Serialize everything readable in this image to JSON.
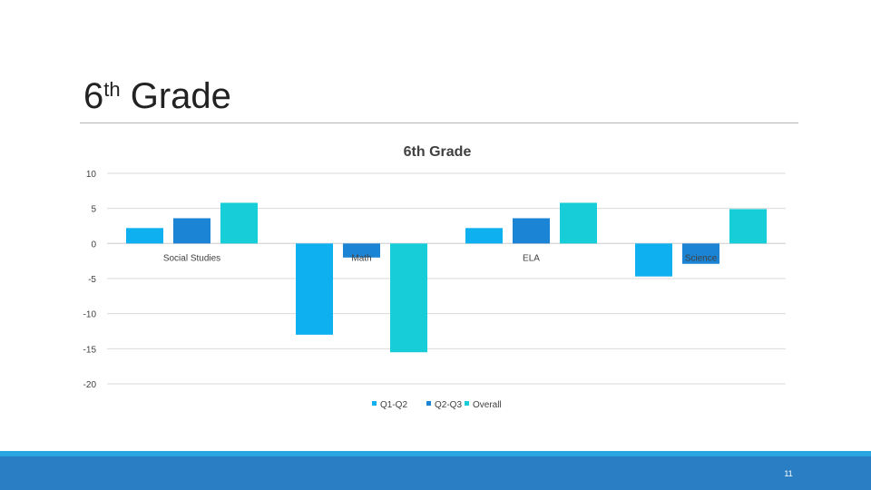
{
  "slide": {
    "title_base": "6",
    "title_sup": "th",
    "title_rest": " Grade",
    "page_number": "11"
  },
  "colors": {
    "q1_q2": "#0fb0f0",
    "q2_q3": "#1b84d4",
    "overall": "#17cdd8",
    "grid": "#d9d9d9",
    "axis_text": "#404040",
    "footer": "#2a7fc4"
  },
  "chart_data": {
    "type": "bar",
    "title": "6th Grade",
    "categories": [
      "Social Studies",
      "Math",
      "ELA",
      "Science"
    ],
    "series": [
      {
        "name": "Q1-Q2",
        "values": [
          2.2,
          -13,
          2.2,
          -4.7
        ]
      },
      {
        "name": "Q2-Q3",
        "values": [
          3.6,
          -2,
          3.6,
          -2.9
        ]
      },
      {
        "name": "Overall",
        "values": [
          5.8,
          -15.5,
          5.8,
          4.9
        ]
      }
    ],
    "ylim": [
      -20,
      10
    ],
    "yticks": [
      "10",
      "5",
      "0",
      "-5",
      "-10",
      "-15",
      "-20"
    ],
    "ytick_values": [
      10,
      5,
      0,
      -5,
      -10,
      -15,
      -20
    ],
    "grid": true,
    "legend_position": "bottom"
  }
}
